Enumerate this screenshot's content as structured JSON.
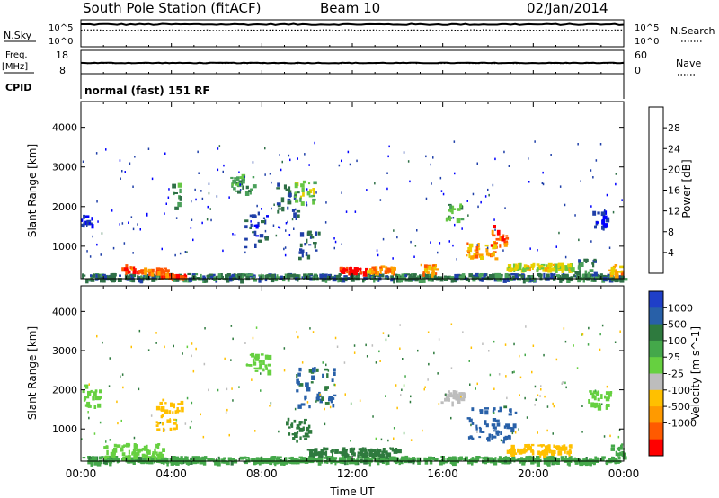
{
  "header": {
    "station": "South Pole Station (fitACF)",
    "beam": "Beam 10",
    "date": "02/Jan/2014"
  },
  "strip_nsky": {
    "left_label": "N.Sky",
    "right_label": "N.Search",
    "tick_top": "10^5",
    "tick_bottom": "10^0",
    "nsky_value": 4.3,
    "nsearch_value": 3.2
  },
  "strip_freq": {
    "left_label_freq": "Freq.",
    "left_label_unit": "[MHz]",
    "right_label": "Nave",
    "left_ticks": [
      "18",
      "8"
    ],
    "right_ticks": [
      "60",
      "0"
    ],
    "freq_value": 12.6,
    "nave_value": 27
  },
  "cpid": {
    "label": "CPID",
    "program": "normal (fast) 151 RF"
  },
  "chart_data": [
    {
      "type": "heatmap",
      "panel": "power",
      "xlabel": "Time UT",
      "ylabel": "Slant Range [km]",
      "x_ticks": [
        "00:00",
        "04:00",
        "08:00",
        "12:00",
        "16:00",
        "20:00",
        "00:00"
      ],
      "y_ticks": [
        "1000",
        "2000",
        "3000",
        "4000"
      ],
      "xlim": [
        0,
        24
      ],
      "ylim": [
        180,
        4650
      ],
      "colorbar": {
        "label": "Power [dB]",
        "ticks": [
          "4",
          "8",
          "12",
          "16",
          "20",
          "24",
          "28"
        ],
        "colors": [
          "#0000ff",
          "#1f3fa8",
          "#2e6f46",
          "#4aa05a",
          "#66c644",
          "#e8d000",
          "#ffa000",
          "#ff5500",
          "#ff0000"
        ]
      },
      "regions": [
        {
          "t": [
            0.0,
            24.0
          ],
          "r": [
            180,
            320
          ],
          "value": 10
        },
        {
          "t": [
            0.0,
            0.5
          ],
          "r": [
            1550,
            1800
          ],
          "value": 4
        },
        {
          "t": [
            1.7,
            2.6
          ],
          "r": [
            380,
            560
          ],
          "value": 26
        },
        {
          "t": [
            2.6,
            3.8
          ],
          "r": [
            350,
            470
          ],
          "value": 24
        },
        {
          "t": [
            3.5,
            4.6
          ],
          "r": [
            220,
            320
          ],
          "value": 26
        },
        {
          "t": [
            4.0,
            4.4
          ],
          "r": [
            1800,
            2700
          ],
          "value": 12
        },
        {
          "t": [
            6.6,
            7.6
          ],
          "r": [
            2400,
            2900
          ],
          "value": 13
        },
        {
          "t": [
            7.2,
            8.2
          ],
          "r": [
            1000,
            1900
          ],
          "value": 7
        },
        {
          "t": [
            8.6,
            9.6
          ],
          "r": [
            1800,
            2600
          ],
          "value": 8
        },
        {
          "t": [
            9.4,
            10.3
          ],
          "r": [
            2100,
            2700
          ],
          "value": 16
        },
        {
          "t": [
            9.6,
            10.5
          ],
          "r": [
            700,
            1400
          ],
          "value": 8
        },
        {
          "t": [
            11.4,
            12.6
          ],
          "r": [
            330,
            480
          ],
          "value": 28
        },
        {
          "t": [
            12.6,
            13.8
          ],
          "r": [
            380,
            520
          ],
          "value": 23
        },
        {
          "t": [
            15.0,
            15.8
          ],
          "r": [
            330,
            560
          ],
          "value": 22
        },
        {
          "t": [
            16.1,
            16.8
          ],
          "r": [
            1700,
            2100
          ],
          "value": 14
        },
        {
          "t": [
            17.0,
            18.3
          ],
          "r": [
            700,
            1100
          ],
          "value": 22
        },
        {
          "t": [
            18.1,
            18.8
          ],
          "r": [
            1000,
            1550
          ],
          "value": 26
        },
        {
          "t": [
            18.8,
            21.8
          ],
          "r": [
            430,
            580
          ],
          "value": 18
        },
        {
          "t": [
            21.8,
            22.8
          ],
          "r": [
            300,
            700
          ],
          "value": 11
        },
        {
          "t": [
            22.6,
            23.2
          ],
          "r": [
            1500,
            1900
          ],
          "value": 5
        },
        {
          "t": [
            23.3,
            23.9
          ],
          "r": [
            300,
            550
          ],
          "value": 21
        }
      ]
    },
    {
      "type": "heatmap",
      "panel": "velocity",
      "xlabel": "Time UT",
      "ylabel": "Slant Range [km]",
      "x_ticks": [
        "00:00",
        "04:00",
        "08:00",
        "12:00",
        "16:00",
        "20:00",
        "00:00"
      ],
      "y_ticks": [
        "1000",
        "2000",
        "3000",
        "4000"
      ],
      "xlim": [
        0,
        24
      ],
      "ylim": [
        180,
        4650
      ],
      "colorbar": {
        "label": "Velocity [m s^-1]",
        "ticks": [
          "1000",
          "500",
          "100",
          "25",
          "-25",
          "-100",
          "-500",
          "-1000"
        ],
        "colors": [
          "#1f3fc8",
          "#2860a8",
          "#2e7a3e",
          "#44a84a",
          "#66d040",
          "#bdbdbd",
          "#ffc000",
          "#ff9a00",
          "#ff5a00",
          "#ff0000"
        ]
      },
      "regions": [
        {
          "t": [
            0.0,
            24.0
          ],
          "r": [
            180,
            320
          ],
          "value": 80
        },
        {
          "t": [
            0.0,
            0.8
          ],
          "r": [
            1600,
            2200
          ],
          "value": 0
        },
        {
          "t": [
            1.0,
            3.6
          ],
          "r": [
            300,
            650
          ],
          "value": 0
        },
        {
          "t": [
            3.2,
            4.5
          ],
          "r": [
            1000,
            1800
          ],
          "value": -300
        },
        {
          "t": [
            7.3,
            8.3
          ],
          "r": [
            2500,
            3000
          ],
          "value": 0
        },
        {
          "t": [
            9.5,
            11.2
          ],
          "r": [
            1600,
            2600
          ],
          "value": 600
        },
        {
          "t": [
            9.0,
            10.2
          ],
          "r": [
            700,
            1300
          ],
          "value": 200
        },
        {
          "t": [
            10.0,
            14.0
          ],
          "r": [
            350,
            550
          ],
          "value": 150
        },
        {
          "t": [
            15.9,
            16.9
          ],
          "r": [
            1700,
            2000
          ],
          "value": -60
        },
        {
          "t": [
            17.0,
            19.2
          ],
          "r": [
            700,
            1600
          ],
          "value": 700
        },
        {
          "t": [
            18.8,
            21.6
          ],
          "r": [
            400,
            620
          ],
          "value": -300
        },
        {
          "t": [
            22.4,
            23.4
          ],
          "r": [
            1600,
            2000
          ],
          "value": 0
        },
        {
          "t": [
            23.4,
            24.0
          ],
          "r": [
            300,
            650
          ],
          "value": 80
        }
      ]
    }
  ]
}
